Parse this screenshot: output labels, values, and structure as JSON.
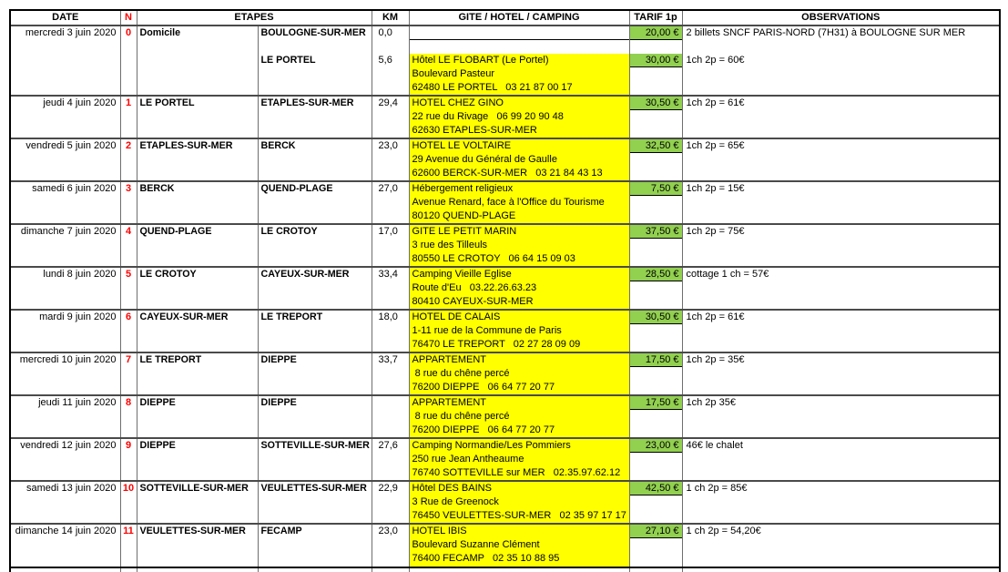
{
  "table": {
    "headers": {
      "date": "DATE",
      "n": "N",
      "etapes": "ETAPES",
      "km": "KM",
      "gite": "GITE / HOTEL / CAMPING",
      "tarif": "TARIF 1p",
      "observations": "OBSERVATIONS"
    },
    "colors": {
      "tarif_green": "#92D050",
      "gite_yellow": "#FFFF00",
      "stage_number_red": "#FF0000"
    },
    "rows": [
      {
        "date": "mercredi 3 juin 2020",
        "n": "0",
        "etape_from": "Domicile",
        "etape_to": "BOULOGNE-SUR-MER",
        "km": "0,0",
        "gite_lines": [],
        "tarif": "20,00 €",
        "obs": "2 billets SNCF PARIS-NORD (7H31) à BOULOGNE SUR MER",
        "second": {
          "etape_to": "LE PORTEL",
          "km": "5,6",
          "gite_lines": [
            "Hôtel LE FLOBART (Le Portel)",
            "Boulevard Pasteur",
            "62480 LE PORTEL   03 21 87 00 17"
          ],
          "tarif": "30,00 €",
          "obs": "1ch 2p = 60€"
        }
      },
      {
        "date": "jeudi 4 juin 2020",
        "n": "1",
        "etape_from": "LE PORTEL",
        "etape_to": "ETAPLES-SUR-MER",
        "km": "29,4",
        "gite_lines": [
          "HOTEL CHEZ GINO",
          "22 rue du Rivage   06 99 20 90 48",
          "62630 ETAPLES-SUR-MER"
        ],
        "tarif": "30,50 €",
        "obs": "1ch 2p = 61€"
      },
      {
        "date": "vendredi 5 juin 2020",
        "n": "2",
        "etape_from": "ETAPLES-SUR-MER",
        "etape_to": "BERCK",
        "km": "23,0",
        "gite_lines": [
          "HOTEL LE VOLTAIRE",
          "29 Avenue du Général de Gaulle",
          "62600 BERCK-SUR-MER   03 21 84 43 13"
        ],
        "tarif": "32,50 €",
        "obs": "1ch 2p = 65€"
      },
      {
        "date": "samedi 6 juin 2020",
        "n": "3",
        "etape_from": "BERCK",
        "etape_to": "QUEND-PLAGE",
        "km": "27,0",
        "gite_lines": [
          "Hébergement religieux",
          "Avenue Renard, face à l'Office du Tourisme",
          "80120 QUEND-PLAGE"
        ],
        "tarif": "7,50 €",
        "obs": "1ch 2p = 15€"
      },
      {
        "date": "dimanche 7 juin 2020",
        "n": "4",
        "etape_from": "QUEND-PLAGE",
        "etape_to": "LE CROTOY",
        "km": "17,0",
        "gite_lines": [
          "GITE LE PETIT MARIN",
          "3 rue des Tilleuls",
          "80550 LE CROTOY   06 64 15 09 03"
        ],
        "tarif": "37,50 €",
        "obs": "1ch 2p = 75€"
      },
      {
        "date": "lundi 8 juin 2020",
        "n": "5",
        "etape_from": "LE CROTOY",
        "etape_to": "CAYEUX-SUR-MER",
        "km": "33,4",
        "gite_lines": [
          "Camping Vieille Eglise",
          "Route d'Eu   03.22.26.63.23",
          "80410 CAYEUX-SUR-MER"
        ],
        "tarif": "28,50 €",
        "obs": "cottage 1 ch = 57€"
      },
      {
        "date": "mardi 9 juin 2020",
        "n": "6",
        "etape_from": "CAYEUX-SUR-MER",
        "etape_to": "LE TREPORT",
        "km": "18,0",
        "gite_lines": [
          "HOTEL DE CALAIS",
          "1-11 rue de la Commune de Paris",
          "76470 LE TREPORT   02 27 28 09 09"
        ],
        "tarif": "30,50 €",
        "obs": "1ch 2p = 61€"
      },
      {
        "date": "mercredi 10 juin 2020",
        "n": "7",
        "etape_from": "LE TREPORT",
        "etape_to": "DIEPPE",
        "km": "33,7",
        "gite_lines": [
          "APPARTEMENT",
          " 8 rue du chêne percé",
          "76200 DIEPPE   06 64 77 20 77"
        ],
        "tarif": "17,50 €",
        "obs": "1ch 2p = 35€"
      },
      {
        "date": "jeudi 11 juin 2020",
        "n": "8",
        "etape_from": "DIEPPE",
        "etape_to": "DIEPPE",
        "km": "",
        "gite_lines": [
          "APPARTEMENT",
          " 8 rue du chêne percé",
          "76200 DIEPPE   06 64 77 20 77"
        ],
        "tarif": "17,50 €",
        "obs": "1ch 2p 35€"
      },
      {
        "date": "vendredi 12 juin 2020",
        "n": "9",
        "etape_from": "DIEPPE",
        "etape_to": "SOTTEVILLE-SUR-MER",
        "km": "27,6",
        "gite_lines": [
          "Camping Normandie/Les Pommiers",
          "250 rue Jean Antheaume",
          "76740 SOTTEVILLE sur MER   02.35.97.62.12"
        ],
        "tarif": "23,00 €",
        "obs": "46€ le chalet"
      },
      {
        "date": "samedi 13 juin 2020",
        "n": "10",
        "etape_from": "SOTTEVILLE-SUR-MER",
        "etape_to": "VEULETTES-SUR-MER",
        "km": "22,9",
        "gite_lines": [
          "Hôtel DES BAINS",
          "3 Rue de Greenock",
          "76450 VEULETTES-SUR-MER   02 35 97 17 17"
        ],
        "tarif": "42,50 €",
        "obs": "1 ch 2p = 85€"
      },
      {
        "date": "dimanche 14 juin 2020",
        "n": "11",
        "etape_from": "VEULETTES-SUR-MER",
        "etape_to": "FECAMP",
        "km": "23,0",
        "gite_lines": [
          "HOTEL IBIS",
          "Boulevard Suzanne Clément",
          "76400 FECAMP   02 35 10 88 95"
        ],
        "tarif": "27,10 €",
        "obs": "1 ch 2p = 54,20€"
      }
    ]
  }
}
